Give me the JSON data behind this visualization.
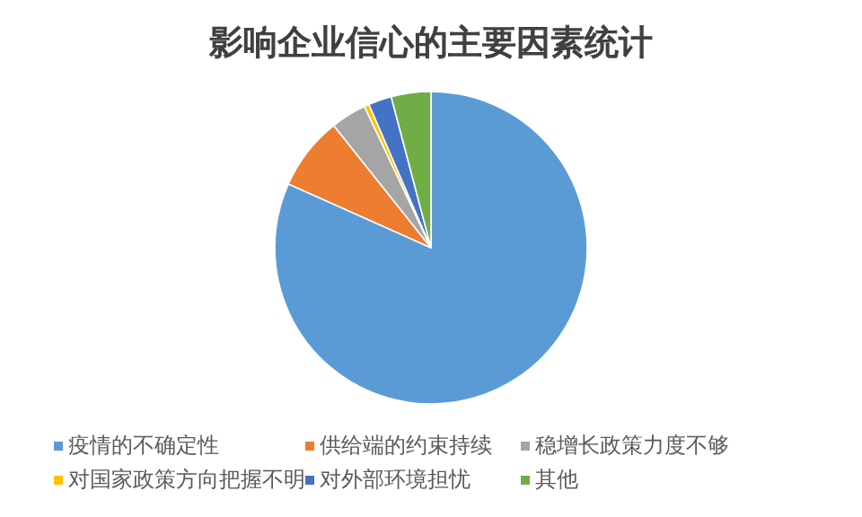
{
  "chart_data": {
    "type": "pie",
    "title": "影响企业信心的主要因素统计",
    "categories": [
      "疫情的不确定性",
      "供给端的约束持续",
      "稳增长政策力度不够",
      "对国家政策方向把握不明",
      "对外部环境担忧",
      "其他"
    ],
    "values": [
      81.7,
      7.6,
      3.7,
      0.5,
      2.4,
      4.1
    ],
    "colors": [
      "#5b9bd5",
      "#ed7d31",
      "#a5a5a5",
      "#ffc000",
      "#4472c4",
      "#70ad47"
    ],
    "legend": "bottom"
  }
}
